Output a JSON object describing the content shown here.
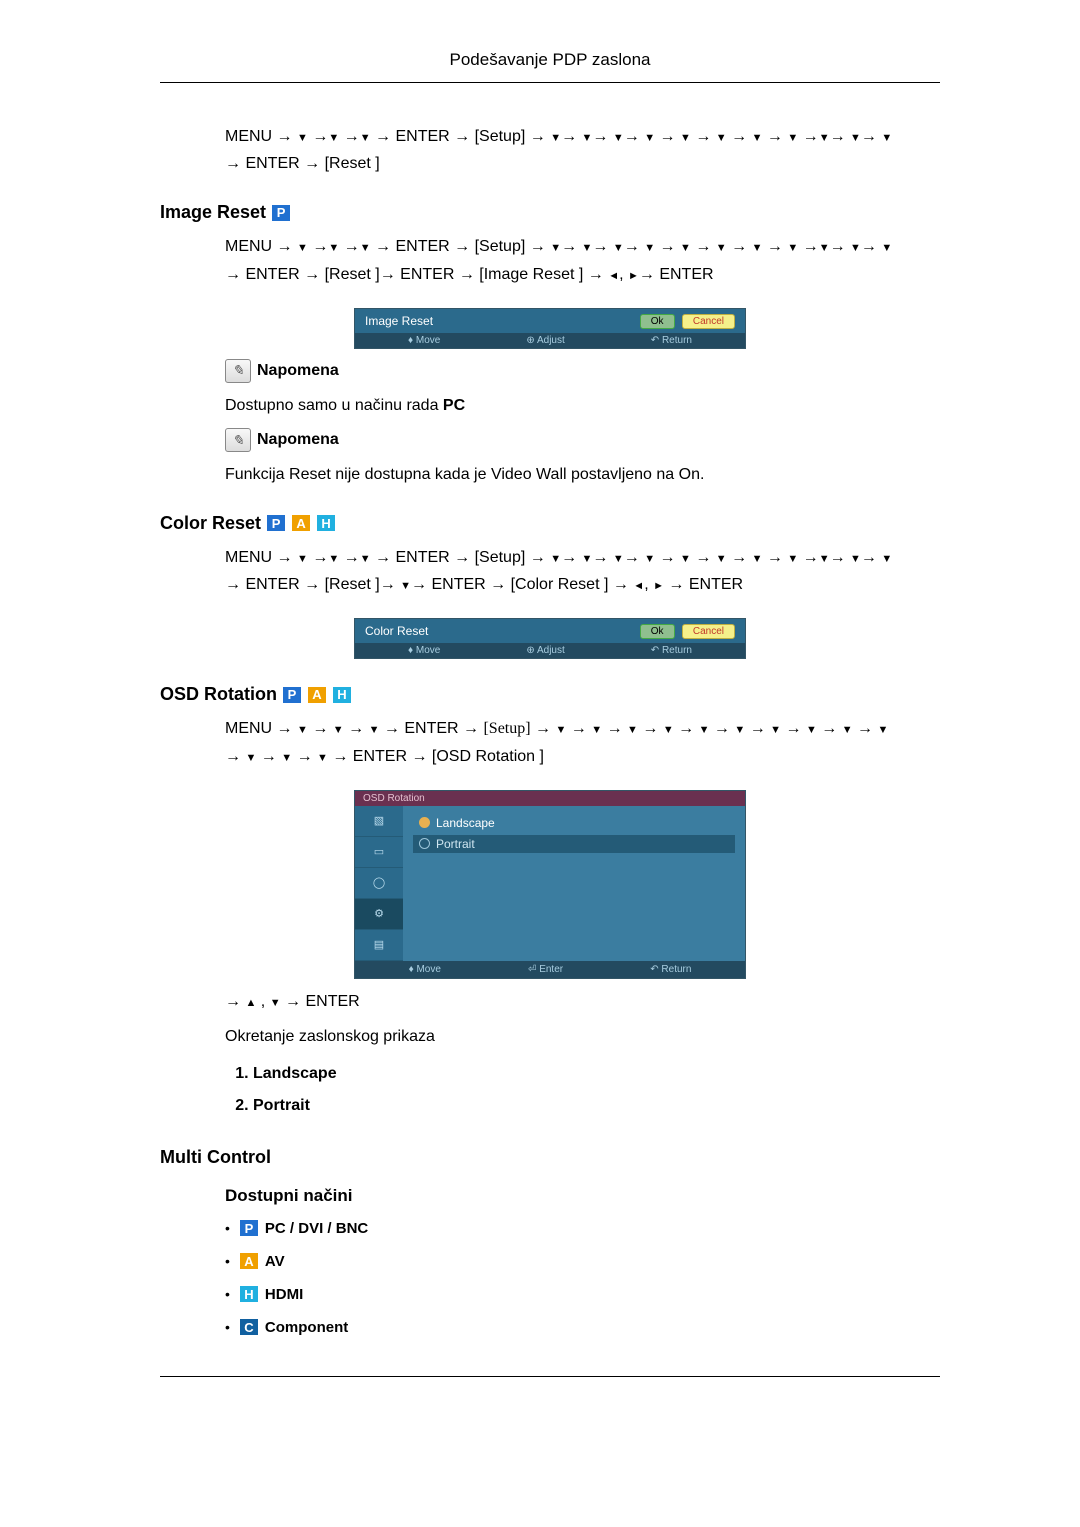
{
  "header": "Podešavanje PDP zaslona",
  "nav1": {
    "line1_pre": "MENU → ",
    "line1_mid": " → ENTER → ",
    "setup": "[Setup]",
    "line2_pre": "→ ENTER → ",
    "reset": "[Reset ]"
  },
  "imageReset": {
    "title": "Image Reset",
    "badge": "P",
    "line1_pre": "MENU → ",
    "enter": " → ENTER → ",
    "setup": "[Setup]",
    "line2": "→ ENTER → [Reset ]→ ENTER → [Image Reset ] → ",
    "line2_end": "→ ENTER",
    "osd_title": "Image Reset",
    "osd_ok": "Ok",
    "osd_cancel": "Cancel",
    "osd_move": "Move",
    "osd_adjust": "Adjust",
    "osd_return": "Return",
    "note_label": "Napomena",
    "note1": "Dostupno samo u načinu rada ",
    "note1_b": "PC",
    "note2_pre": "Funkcija ",
    "note2_b1": "Reset",
    "note2_mid": " nije dostupna kada je ",
    "note2_b2": "Video Wall",
    "note2_mid2": " postavljeno na ",
    "note2_b3": "On",
    "note2_end": "."
  },
  "colorReset": {
    "title": "Color Reset",
    "line2": "→ ENTER → [Reset ]→ ",
    "line2b": "→ ENTER → [Color Reset ] → ",
    "line2_end": " → ENTER",
    "osd_title": "Color Reset"
  },
  "osdRotation": {
    "title": "OSD Rotation",
    "line1_pre": "MENU → ",
    "enter": " → ENTER → ",
    "setup_serif": "[Setup]",
    "line2": " → ENTER → [OSD Rotation ]",
    "panel_header": "OSD Rotation",
    "opt_landscape": "Landscape",
    "opt_portrait": "Portrait",
    "footer_move": "Move",
    "footer_enter": "Enter",
    "footer_return": "Return",
    "post1": "→ ",
    "post2": " , ",
    "post3": " → ENTER",
    "desc": "Okretanje zaslonskog prikaza",
    "li1": "Landscape",
    "li2": "Portrait"
  },
  "multiControl": {
    "title": "Multi Control",
    "sub": "Dostupni načini",
    "m1": "PC / DVI / BNC",
    "m2": "AV",
    "m3": "HDMI",
    "m4": "Component"
  },
  "colors": {
    "p": "#2070d0",
    "a": "#f0a000",
    "h": "#20b0e0",
    "c": "#1060a0"
  }
}
